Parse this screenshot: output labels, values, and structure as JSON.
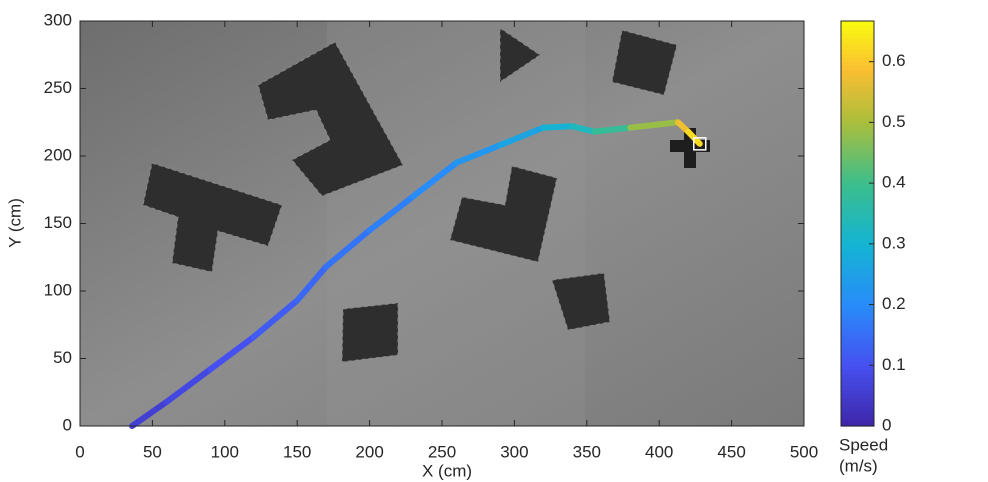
{
  "chart_data": {
    "type": "line",
    "x_label": "X (cm)",
    "y_label": "Y (cm)",
    "x": [
      36,
      60,
      90,
      120,
      150,
      170,
      200,
      230,
      260,
      290,
      320,
      340,
      355,
      380,
      413,
      420,
      428
    ],
    "y": [
      0,
      18,
      42,
      66,
      93,
      118,
      145,
      170,
      195,
      208,
      221,
      222,
      218,
      221,
      225,
      218,
      209
    ],
    "speed": [
      0.05,
      0.07,
      0.09,
      0.11,
      0.13,
      0.15,
      0.17,
      0.19,
      0.21,
      0.24,
      0.28,
      0.31,
      0.35,
      0.42,
      0.55,
      0.6,
      0.65
    ],
    "xlim": [
      0,
      500
    ],
    "xticks": [
      0,
      50,
      100,
      150,
      200,
      250,
      300,
      350,
      400,
      450,
      500
    ],
    "ylim": [
      0,
      300
    ],
    "yticks": [
      0,
      50,
      100,
      150,
      200,
      250,
      300
    ],
    "colorbar": {
      "label": [
        "Speed",
        "(m/s)"
      ],
      "clim": [
        0,
        0.667
      ],
      "ticks": [
        0,
        0.1,
        0.2,
        0.3,
        0.4,
        0.5,
        0.6
      ],
      "colormap": "parula"
    }
  }
}
